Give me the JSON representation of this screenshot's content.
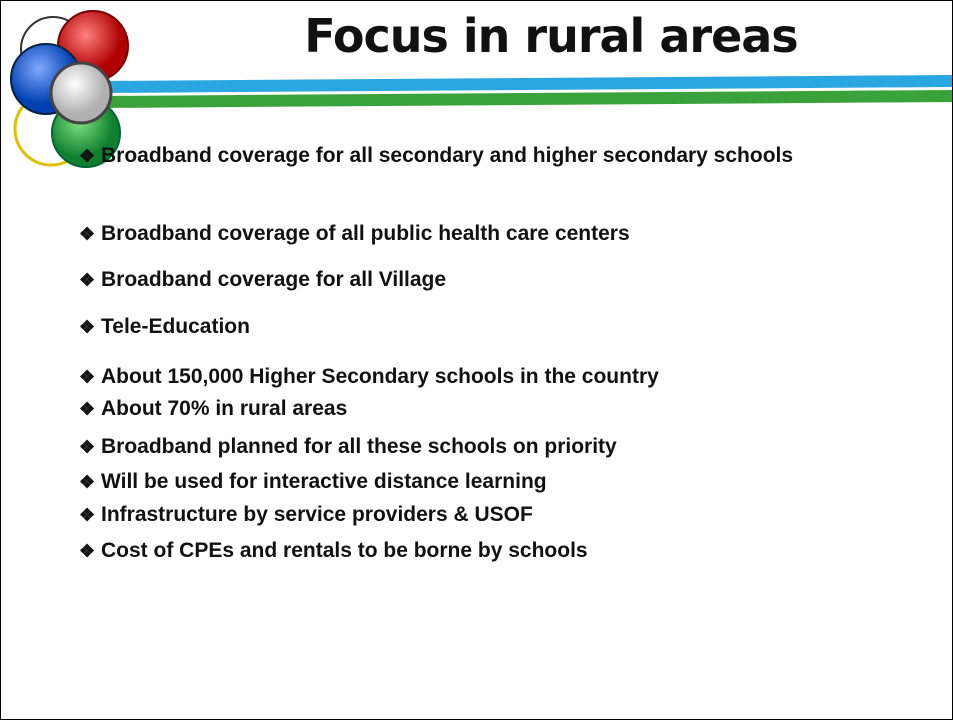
{
  "title": "Focus in rural areas",
  "bullets": [
    "Broadband coverage for all secondary and higher secondary schools",
    "Broadband coverage of all public health care centers",
    "Broadband coverage for all Village",
    "Tele-Education",
    "About 150,000 Higher Secondary schools in the country",
    "About 70% in rural areas",
    "Broadband planned for all these schools on priority",
    "Will be used for interactive distance learning",
    "Infrastructure by service providers & USOF",
    "Cost of CPEs and rentals to be borne by schools"
  ]
}
